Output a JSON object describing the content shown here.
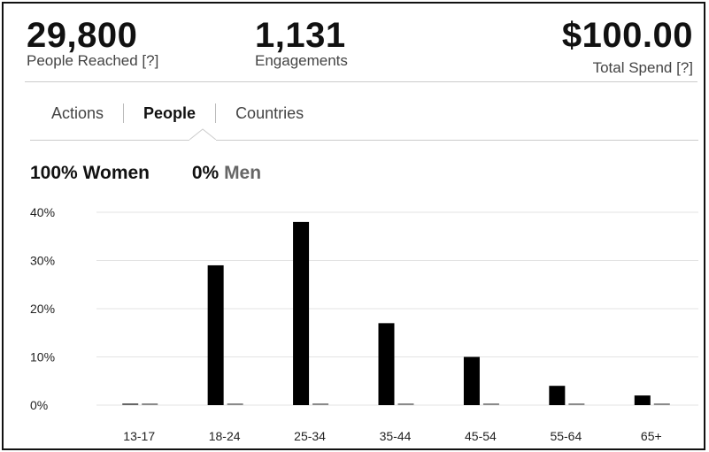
{
  "metrics": {
    "reached": {
      "value": "29,800",
      "label": "People Reached [?]"
    },
    "engagements": {
      "value": "1,131",
      "label": "Engagements"
    },
    "spend": {
      "value": "$100.00",
      "label": "Total Spend [?]"
    }
  },
  "tabs": [
    {
      "label": "Actions",
      "active": false
    },
    {
      "label": "People",
      "active": true
    },
    {
      "label": "Countries",
      "active": false
    }
  ],
  "gender": {
    "women_pct": "100%",
    "women_label": "Women",
    "men_pct": "0%",
    "men_label": "Men"
  },
  "colors": {
    "women": "#000000",
    "men": "#8a8a8a",
    "grid": "#e3e3e3"
  },
  "chart_data": {
    "type": "bar",
    "categories": [
      "13-17",
      "18-24",
      "25-34",
      "35-44",
      "45-54",
      "55-64",
      "65+"
    ],
    "series": [
      {
        "name": "Women",
        "values": [
          0,
          29,
          38,
          17,
          10,
          4,
          2
        ]
      },
      {
        "name": "Men",
        "values": [
          0,
          0,
          0,
          0,
          0,
          0,
          0
        ]
      }
    ],
    "yticks": [
      "0%",
      "10%",
      "20%",
      "30%",
      "40%"
    ],
    "ylim": [
      0,
      40
    ],
    "xlabel": "",
    "ylabel": "",
    "grid": true
  }
}
